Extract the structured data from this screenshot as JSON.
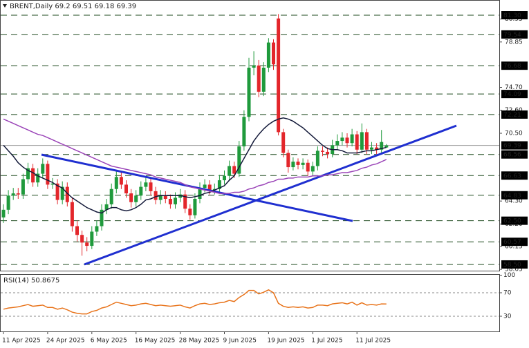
{
  "chart_data": {
    "type": "candlestick",
    "symbol": "BRENT,Daily",
    "categories": [
      "11 Apr 2025",
      null,
      null,
      null,
      null,
      null,
      null,
      null,
      null,
      "24 Apr 2025",
      null,
      null,
      null,
      null,
      null,
      null,
      null,
      null,
      "6 May 2025",
      null,
      null,
      null,
      null,
      null,
      null,
      null,
      null,
      "16 May 2025",
      null,
      null,
      null,
      null,
      null,
      null,
      null,
      null,
      "28 May 2025",
      null,
      null,
      null,
      null,
      null,
      null,
      null,
      null,
      "9 Jun 2025",
      null,
      null,
      null,
      null,
      null,
      null,
      null,
      null,
      "19 Jun 2025",
      null,
      null,
      null,
      null,
      null,
      null,
      null,
      null,
      "1 Jul 2025",
      null,
      null,
      null,
      null,
      null,
      null,
      null,
      null,
      "11 Jul 2025",
      null,
      null,
      null,
      null,
      null,
      null
    ],
    "open": [
      62.8,
      63.5,
      64.8,
      65.0,
      64.9,
      66.3,
      67.3,
      66.0,
      66.8,
      67.7,
      65.8,
      65.9,
      64.4,
      65.6,
      64.2,
      62.0,
      61.2,
      60.5,
      60.2,
      61.5,
      62.0,
      63.5,
      64.0,
      65.4,
      66.5,
      65.8,
      65.0,
      64.2,
      64.8,
      65.6,
      66.0,
      65.2,
      64.4,
      64.8,
      64.5,
      64.0,
      64.6,
      64.9,
      63.6,
      63.0,
      64.5,
      65.5,
      65.8,
      65.3,
      65.4,
      66.2,
      66.6,
      67.5,
      66.8,
      69.3,
      72.0,
      76.5,
      76.7,
      74.3,
      76.5,
      78.8,
      81.0,
      70.6,
      68.7,
      67.4,
      67.9,
      67.6,
      67.8,
      67.0,
      67.5,
      68.9,
      68.8,
      68.6,
      69.4,
      69.8,
      70.1,
      69.6,
      70.4,
      69.0,
      70.6,
      69.0,
      69.2,
      69.0,
      69.2
    ],
    "high": [
      64.0,
      65.3,
      65.5,
      65.5,
      66.8,
      67.8,
      67.7,
      67.3,
      68.2,
      68.0,
      66.4,
      66.3,
      66.1,
      66.0,
      64.6,
      62.5,
      61.6,
      61.0,
      62.0,
      62.5,
      64.0,
      64.5,
      65.9,
      67.0,
      66.9,
      66.2,
      65.4,
      65.3,
      66.1,
      66.5,
      66.4,
      65.6,
      65.3,
      65.2,
      64.9,
      65.1,
      65.4,
      65.3,
      64.0,
      65.0,
      66.0,
      66.3,
      66.2,
      65.9,
      66.7,
      67.1,
      68.0,
      67.9,
      69.8,
      72.6,
      77.4,
      78.0,
      77.2,
      77.0,
      79.2,
      79.1,
      81.4,
      70.9,
      69.0,
      68.3,
      68.2,
      68.2,
      68.1,
      67.9,
      69.3,
      69.3,
      69.2,
      69.9,
      70.4,
      70.6,
      70.5,
      70.9,
      70.7,
      71.4,
      70.9,
      69.7,
      69.6,
      70.8,
      69.51
    ],
    "low": [
      62.3,
      63.1,
      64.4,
      64.5,
      64.5,
      65.9,
      65.6,
      65.6,
      66.4,
      65.4,
      65.4,
      64.0,
      64.0,
      63.8,
      61.5,
      60.6,
      59.3,
      59.7,
      59.9,
      61.1,
      61.6,
      63.1,
      63.6,
      65.0,
      65.4,
      64.6,
      63.7,
      63.8,
      64.4,
      65.2,
      64.8,
      64.0,
      64.0,
      64.1,
      63.6,
      63.6,
      64.2,
      63.2,
      62.6,
      62.7,
      64.1,
      65.1,
      64.9,
      64.9,
      65.0,
      65.8,
      66.2,
      66.4,
      66.5,
      68.9,
      71.6,
      75.8,
      73.8,
      73.9,
      76.1,
      76.3,
      70.3,
      68.3,
      66.9,
      67.1,
      67.2,
      67.2,
      66.6,
      66.7,
      67.1,
      68.4,
      68.2,
      68.3,
      69.0,
      69.4,
      69.2,
      69.3,
      68.6,
      68.7,
      68.6,
      68.6,
      68.6,
      68.7,
      69.18
    ],
    "close": [
      63.5,
      64.8,
      65.0,
      64.9,
      66.3,
      67.3,
      66.0,
      66.8,
      67.7,
      65.8,
      65.9,
      64.4,
      65.6,
      64.2,
      62.0,
      61.2,
      60.5,
      60.2,
      61.5,
      62.0,
      63.5,
      64.0,
      65.4,
      66.5,
      65.8,
      65.0,
      64.2,
      64.8,
      65.6,
      66.0,
      65.2,
      64.4,
      64.8,
      64.5,
      64.0,
      64.6,
      64.9,
      63.6,
      63.0,
      64.5,
      65.5,
      65.8,
      65.3,
      65.4,
      66.2,
      66.6,
      67.5,
      66.8,
      69.3,
      72.0,
      76.5,
      76.7,
      74.3,
      76.5,
      78.8,
      76.8,
      70.6,
      68.7,
      67.4,
      67.9,
      67.6,
      67.8,
      67.0,
      67.5,
      68.9,
      68.8,
      68.6,
      69.4,
      69.8,
      70.1,
      69.6,
      70.4,
      69.0,
      70.6,
      69.0,
      69.2,
      69.0,
      69.7,
      69.39
    ],
    "up_color": "#1f9a3c",
    "down_color": "#e3262b",
    "moving_averages": [
      {
        "color": "#141a3a",
        "values": [
          69.4,
          68.9,
          68.4,
          67.8,
          67.4,
          67.1,
          66.9,
          66.6,
          66.4,
          66.2,
          66.0,
          65.7,
          65.5,
          65.0,
          64.6,
          64.3,
          64.0,
          63.7,
          63.5,
          63.3,
          63.2,
          63.5,
          63.7,
          63.7,
          63.5,
          63.4,
          63.5,
          63.7,
          64.0,
          64.4,
          64.5,
          64.7,
          64.8,
          64.8,
          64.8,
          64.8,
          64.8,
          64.7,
          64.6,
          64.7,
          64.8,
          65.0,
          65.1,
          65.3,
          65.5,
          65.7,
          66.2,
          66.6,
          67.4,
          68.2,
          69.0,
          69.8,
          70.4,
          70.9,
          71.3,
          71.6,
          71.8,
          71.9,
          71.8,
          71.6,
          71.3,
          71.0,
          70.6,
          70.2,
          69.8,
          69.4,
          69.1,
          69.0,
          69.0,
          68.9,
          68.7,
          68.7,
          68.7,
          68.8,
          68.9,
          68.9,
          69.0,
          69.1,
          69.2
        ]
      },
      {
        "color": "#9b45b8",
        "values": [
          71.8,
          71.6,
          71.4,
          71.2,
          71.0,
          70.8,
          70.6,
          70.4,
          70.3,
          70.1,
          69.9,
          69.7,
          69.5,
          69.3,
          69.1,
          68.9,
          68.7,
          68.5,
          68.3,
          68.1,
          67.9,
          67.7,
          67.5,
          67.4,
          67.3,
          67.2,
          67.1,
          67.0,
          66.9,
          66.8,
          66.7,
          66.5,
          66.4,
          66.3,
          66.2,
          66.1,
          66.0,
          65.8,
          65.6,
          65.5,
          65.4,
          65.3,
          65.2,
          65.1,
          65.0,
          65.0,
          65.0,
          65.1,
          65.1,
          65.2,
          65.4,
          65.5,
          65.7,
          65.8,
          66.0,
          66.1,
          66.3,
          66.3,
          66.4,
          66.4,
          66.5,
          66.5,
          66.5,
          66.6,
          66.6,
          66.6,
          66.7,
          66.7,
          66.8,
          66.9,
          66.9,
          67.0,
          67.1,
          67.3,
          67.4,
          67.6,
          67.7,
          67.9,
          68.1
        ]
      }
    ],
    "ylim": [
      57.93,
      82.69
    ],
    "yticks": [
      80.95,
      78.85,
      {
        "value": 74.7,
        "label": "74.70"
      },
      {
        "value": 72.6,
        "label": "72.60"
      },
      {
        "value": 70.5,
        "label": "70.50"
      },
      {
        "value": 64.3,
        "label": "64.30"
      },
      {
        "value": 62.2,
        "label": "62.20"
      },
      60.15,
      58.05
    ],
    "levels": [
      {
        "value": 81.3,
        "label": "81.30"
      },
      79.54,
      76.68,
      74.09,
      72.21,
      68.56,
      66.63,
      64.83,
      {
        "value": 62.5,
        "label": "62.50"
      },
      60.57,
      {
        "value": 58.5,
        "label": "58.50"
      }
    ],
    "rsi": {
      "label": "RSI(14)",
      "color": "#e8731a",
      "ylim": [
        4.1,
        101.8
      ],
      "yticks": [
        30,
        70,
        100
      ],
      "values": [
        42,
        44,
        45,
        46,
        48,
        50,
        47,
        48,
        49,
        45,
        45,
        42,
        44,
        41,
        37,
        35,
        34,
        34,
        38,
        40,
        44,
        46,
        50,
        54,
        52,
        50,
        48,
        49,
        51,
        52,
        50,
        48,
        49,
        48,
        47,
        48,
        49,
        46,
        44,
        48,
        51,
        52,
        50,
        51,
        53,
        54,
        57,
        55,
        62,
        67,
        74,
        74,
        68,
        71,
        75,
        70,
        52,
        47,
        45,
        46,
        45,
        46,
        44,
        45,
        49,
        49,
        48,
        51,
        52,
        53,
        51,
        54,
        49,
        53,
        49,
        50,
        49,
        51,
        50.8675
      ]
    }
  }
}
